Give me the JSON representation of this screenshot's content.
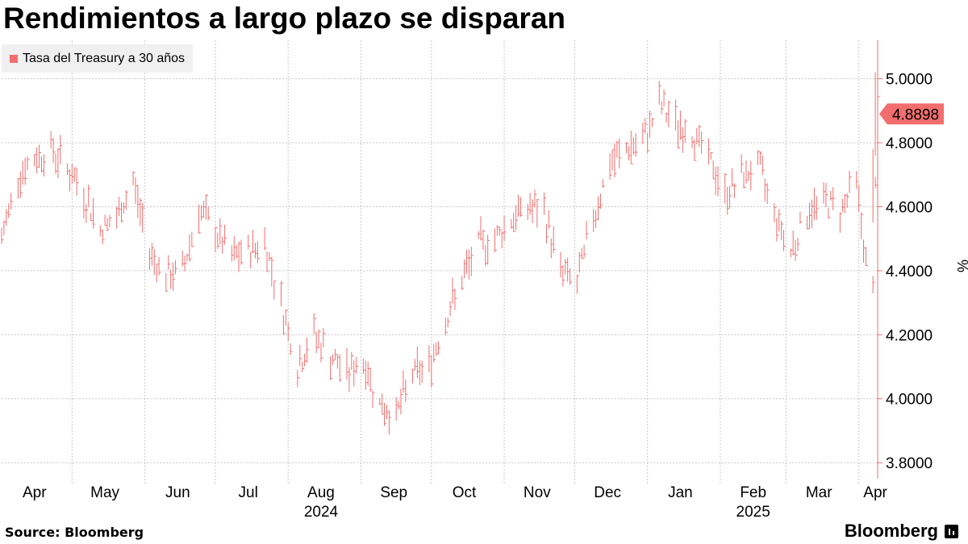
{
  "header": {
    "title": "Rendimientos a largo plazo se disparan"
  },
  "footer": {
    "source": "Source: Bloomberg",
    "brand": "Bloomberg",
    "brand_icon": "bloomberg-terminal-icon"
  },
  "colors": {
    "series": "#f26d6d",
    "grid": "#c8c8c8",
    "legend_bg": "#f0f0f0",
    "last_value_bg": "#f26d6d"
  },
  "chart_data": {
    "type": "line",
    "style": "daily-ohlc-bars",
    "title": "Rendimientos a largo plazo se disparan",
    "ylabel": "%",
    "ylim": [
      3.75,
      5.12
    ],
    "y_ticks": [
      "3.8000",
      "4.0000",
      "4.2000",
      "4.4000",
      "4.6000",
      "4.8000",
      "5.0000"
    ],
    "y_tick_values": [
      3.8,
      4.0,
      4.2,
      4.4,
      4.6,
      4.8,
      5.0
    ],
    "x_range": [
      "2024-04-01",
      "2025-04-09"
    ],
    "x_ticks": [
      "Apr",
      "May",
      "Jun",
      "Jul",
      "Aug",
      "Sep",
      "Oct",
      "Nov",
      "Dec",
      "Jan",
      "Feb",
      "Mar",
      "Apr"
    ],
    "x_tick_dates": [
      "2024-04-15",
      "2024-05-15",
      "2024-06-15",
      "2024-07-15",
      "2024-08-15",
      "2024-09-15",
      "2024-10-15",
      "2024-11-15",
      "2024-12-15",
      "2025-01-15",
      "2025-02-15",
      "2025-03-15",
      "2025-04-08"
    ],
    "x_year_labels": [
      "2024",
      "2025"
    ],
    "x_year_dates": [
      "2024-08-15",
      "2025-02-15"
    ],
    "grid": true,
    "legend_position": "top-left",
    "last_value": "4.8898",
    "series": [
      {
        "name": "Tasa del Treasury a 30 años",
        "x": [
          "2024-04-01",
          "2024-04-08",
          "2024-04-15",
          "2024-04-22",
          "2024-04-29",
          "2024-05-06",
          "2024-05-13",
          "2024-05-20",
          "2024-05-27",
          "2024-06-03",
          "2024-06-10",
          "2024-06-17",
          "2024-06-24",
          "2024-07-01",
          "2024-07-08",
          "2024-07-15",
          "2024-07-22",
          "2024-07-29",
          "2024-08-05",
          "2024-08-12",
          "2024-08-19",
          "2024-08-26",
          "2024-09-02",
          "2024-09-09",
          "2024-09-16",
          "2024-09-23",
          "2024-09-30",
          "2024-10-07",
          "2024-10-14",
          "2024-10-21",
          "2024-10-28",
          "2024-11-04",
          "2024-11-11",
          "2024-11-18",
          "2024-11-25",
          "2024-12-02",
          "2024-12-09",
          "2024-12-16",
          "2024-12-23",
          "2024-12-30",
          "2025-01-06",
          "2025-01-13",
          "2025-01-20",
          "2025-01-27",
          "2025-02-03",
          "2025-02-10",
          "2025-02-17",
          "2025-02-24",
          "2025-03-03",
          "2025-03-10",
          "2025-03-17",
          "2025-03-24",
          "2025-03-31",
          "2025-04-03",
          "2025-04-07",
          "2025-04-08",
          "2025-04-09"
        ],
        "values": [
          4.5,
          4.7,
          4.75,
          4.78,
          4.72,
          4.64,
          4.53,
          4.56,
          4.68,
          4.46,
          4.38,
          4.4,
          4.59,
          4.52,
          4.44,
          4.46,
          4.49,
          4.3,
          4.1,
          4.2,
          4.13,
          4.08,
          4.12,
          3.98,
          3.95,
          4.08,
          4.1,
          4.25,
          4.37,
          4.48,
          4.5,
          4.56,
          4.6,
          4.58,
          4.4,
          4.36,
          4.57,
          4.73,
          4.78,
          4.8,
          4.92,
          4.86,
          4.83,
          4.75,
          4.64,
          4.69,
          4.73,
          4.58,
          4.46,
          4.58,
          4.62,
          4.59,
          4.68,
          4.48,
          4.32,
          4.7,
          4.89
        ]
      }
    ]
  }
}
